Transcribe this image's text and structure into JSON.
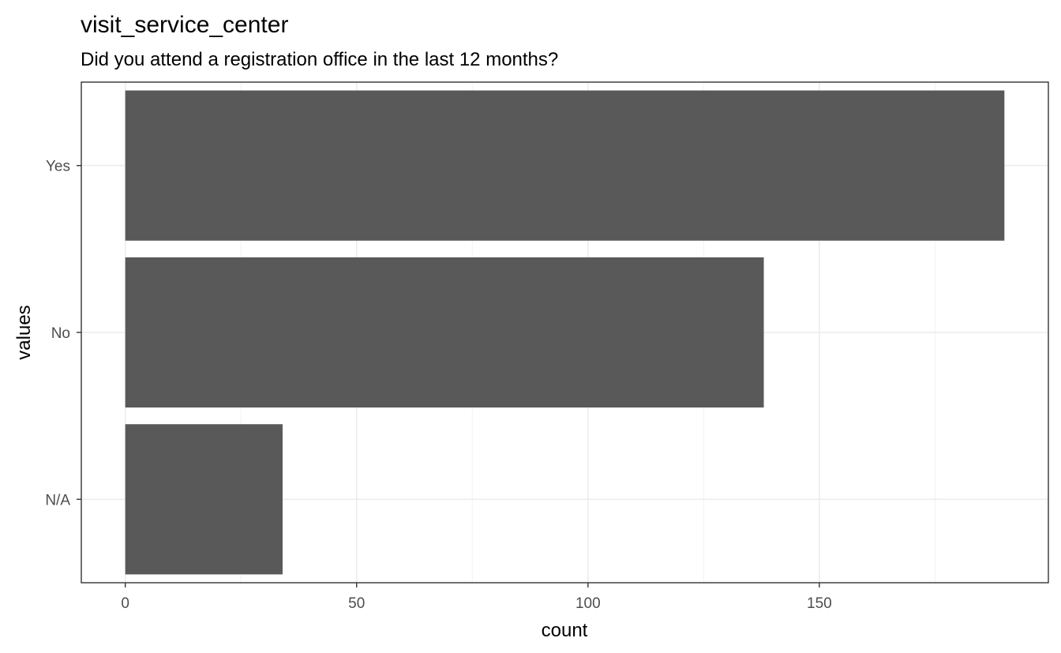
{
  "chart_data": {
    "type": "bar",
    "orientation": "horizontal",
    "title": "visit_service_center",
    "subtitle": "Did you attend a registration office in the last 12 months?",
    "xlabel": "count",
    "ylabel": "values",
    "categories": [
      "Yes",
      "No",
      "N/A"
    ],
    "values": [
      190,
      138,
      34
    ],
    "xlim": [
      -9.5,
      199.5
    ],
    "xticks": [
      0,
      50,
      100,
      150
    ],
    "xtick_labels": [
      "0",
      "50",
      "100",
      "150"
    ],
    "grid": true,
    "legend": "none",
    "colors": {
      "bar": "#595959",
      "grid_major": "#ebebeb",
      "grid_minor": "#f2f2f2",
      "panel_border": "#333333",
      "tick_text": "#4d4d4d"
    }
  }
}
